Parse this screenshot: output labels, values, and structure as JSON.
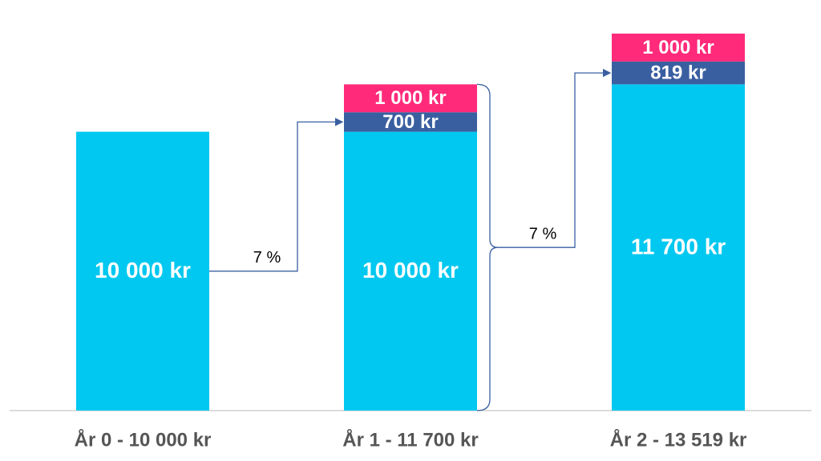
{
  "chart_data": {
    "type": "bar",
    "stacked": true,
    "categories": [
      "År 0 - 10 000 kr",
      "År 1 - 11 700 kr",
      "År 2 - 13 519 kr"
    ],
    "series": [
      {
        "color": "#00c8f0",
        "values": [
          10000,
          10000,
          11700
        ],
        "value_labels": [
          "10 000 kr",
          "10 000 kr",
          "11 700 kr"
        ]
      },
      {
        "color": "#3a5fa0",
        "values": [
          null,
          700,
          819
        ],
        "value_labels": [
          null,
          "700 kr",
          "819 kr"
        ]
      },
      {
        "color": "#ff2a7a",
        "values": [
          null,
          1000,
          1000
        ],
        "value_labels": [
          null,
          "1 000 kr",
          "1 000 kr"
        ]
      }
    ],
    "annotations": [
      "7 %",
      "7 %"
    ]
  }
}
